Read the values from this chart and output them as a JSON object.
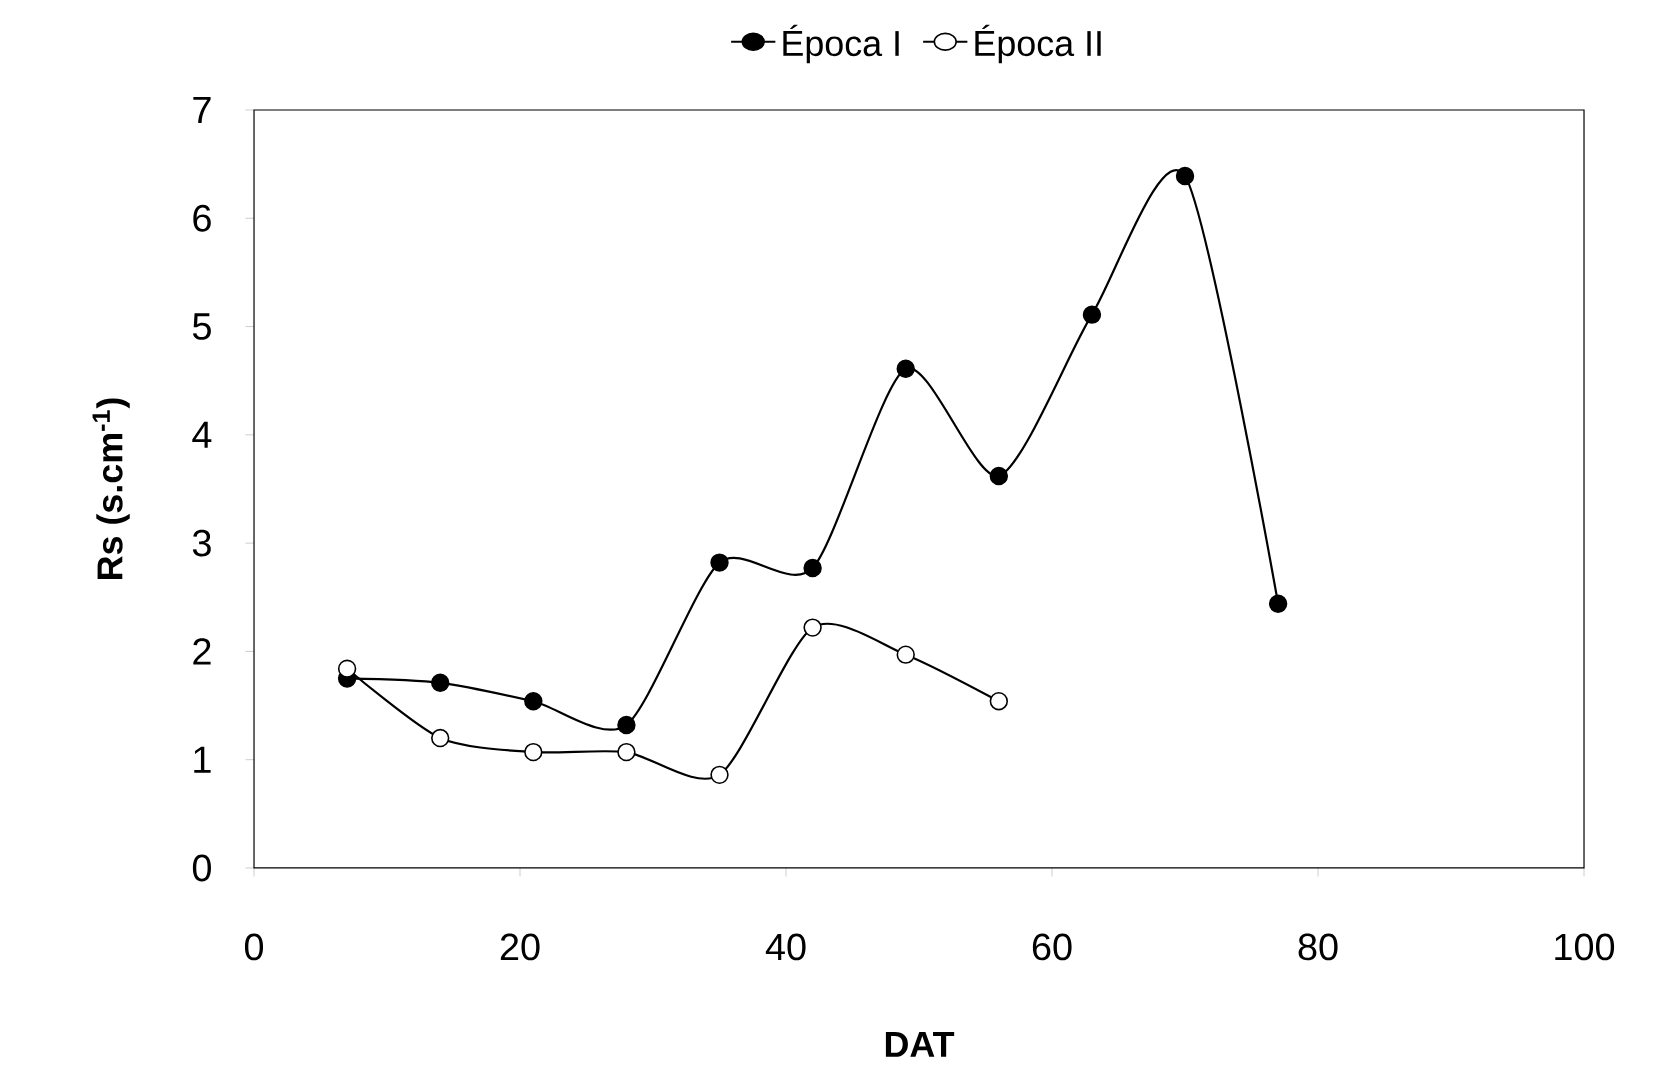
{
  "chart_data": {
    "type": "line",
    "xlabel": "DAT",
    "ylabel": "Rs (s.cm$^{-1}$)",
    "xlim": [
      0,
      100
    ],
    "xticks": [
      0,
      20,
      40,
      60,
      80,
      100
    ],
    "ylim": [
      0,
      7
    ],
    "yticks": [
      0,
      1,
      2,
      3,
      4,
      5,
      6,
      7
    ],
    "x": [
      7,
      14,
      21,
      28,
      35,
      42,
      49,
      56,
      63,
      70,
      77
    ],
    "series": [
      {
        "name": "Época I",
        "color": "#000000",
        "values": [
          1.75,
          1.71,
          1.54,
          1.32,
          2.82,
          2.77,
          4.61,
          3.62,
          5.11,
          6.39,
          2.44
        ]
      },
      {
        "name": "Época II",
        "color": "#000000",
        "values": [
          1.84,
          1.2,
          1.07,
          1.07,
          0.86,
          2.22,
          1.97,
          1.54,
          null,
          null,
          null
        ]
      }
    ],
    "marker": "circle",
    "legend": "top",
    "grid": false
  }
}
